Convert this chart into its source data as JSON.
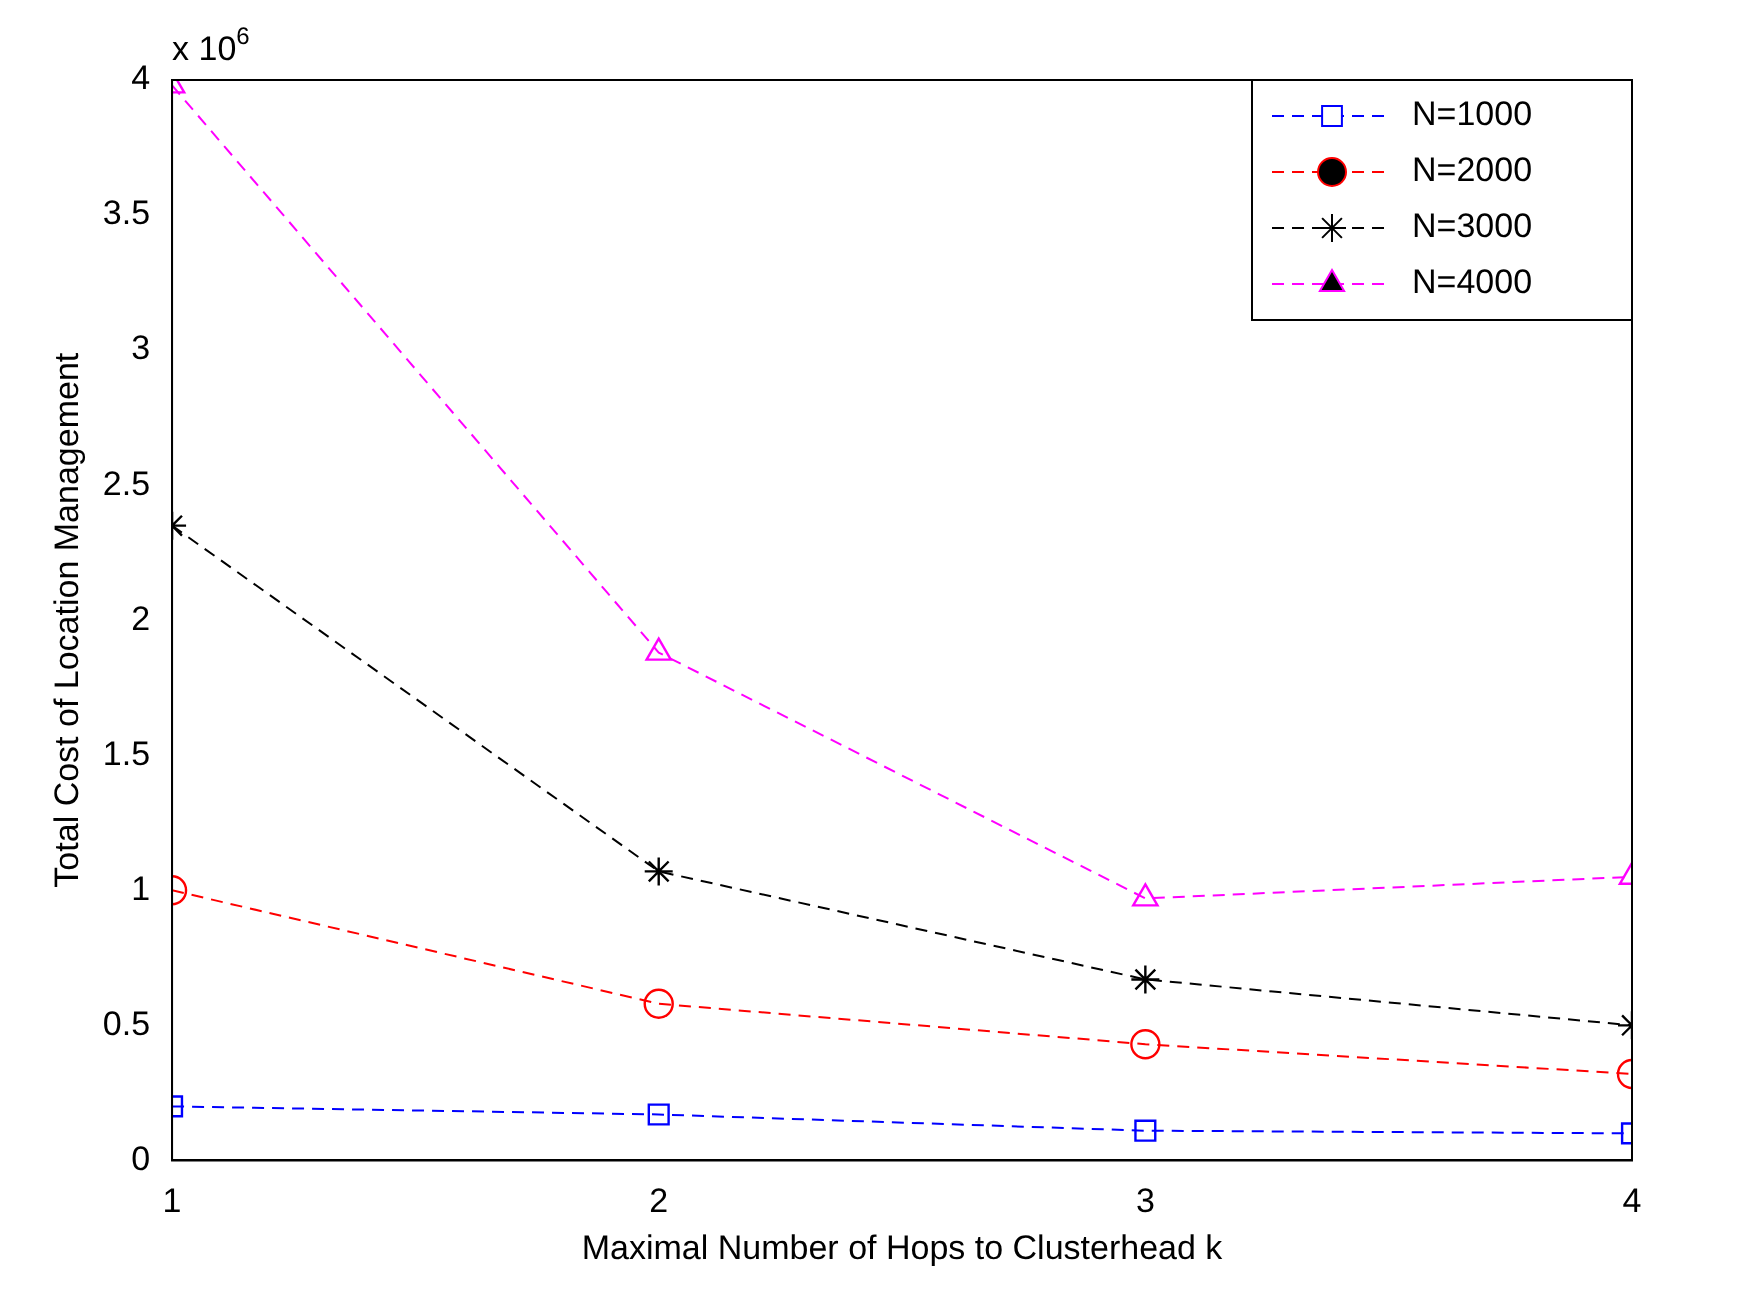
{
  "chart_data": {
    "type": "line",
    "xlabel": "Maximal Number of Hops to Clusterhead k",
    "ylabel": "Total Cost of Location Management",
    "annotations": [
      "x 10$^{6}$"
    ],
    "x": [
      1,
      2,
      3,
      4
    ],
    "xlim": [
      1,
      4
    ],
    "xticks": [
      1,
      2,
      3,
      4
    ],
    "ylim": [
      0,
      4
    ],
    "yticks": [
      0,
      0.5,
      1,
      1.5,
      2,
      2.5,
      3,
      3.5,
      4
    ],
    "grid": false,
    "legend": "top right",
    "line_style": "dashed",
    "series": [
      {
        "name": "N=1000",
        "color": "#0000ff",
        "marker": "square",
        "values": [
          0.2,
          0.17,
          0.11,
          0.1
        ]
      },
      {
        "name": "N=2000",
        "color": "#ff0000",
        "marker": "circle",
        "values": [
          1.0,
          0.58,
          0.43,
          0.32
        ]
      },
      {
        "name": "N=3000",
        "color": "#000000",
        "marker": "cross",
        "values": [
          2.35,
          1.07,
          0.67,
          0.5
        ]
      },
      {
        "name": "N=4000",
        "color": "#ff00ff",
        "marker": "triangle",
        "values": [
          3.98,
          1.88,
          0.97,
          1.05
        ]
      }
    ]
  }
}
